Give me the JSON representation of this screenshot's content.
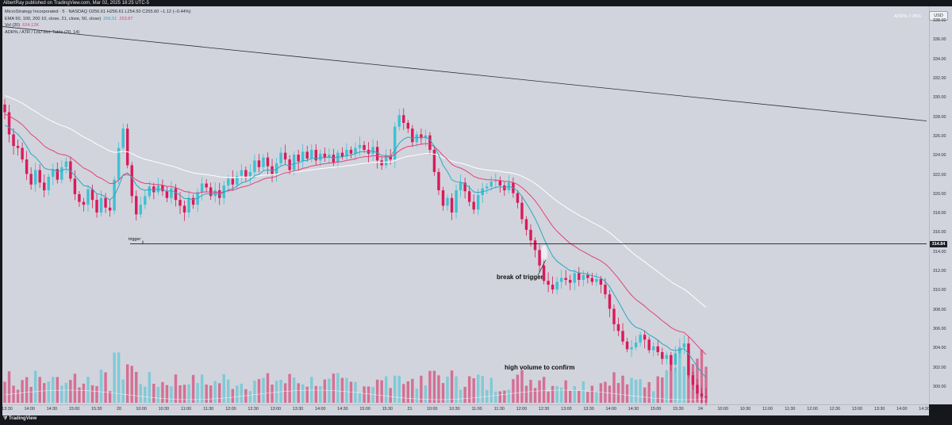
{
  "publisher_line": "AlbertRay published on TradingView.com, Mar 02, 2025 18:25 UTC-5",
  "legend": {
    "title": "MicroStrategy Incorporated · 5 · NASDAQ  O256.61  H256.61  L254.50  C255.60  −1.12 (−0.44%)",
    "ema_label": "EMA 50, 100, 200 10, close, 21, close, 50, close)",
    "ema_v1": "256.51",
    "ema_v2": "253.87",
    "ema_v3": "",
    "vol_label": "Vol (20)",
    "vol_value": "624.12K",
    "adr_label": "ADR% / ATR / LoD dist. Table (20, 14)"
  },
  "adrs_readout": "ADR%  7.35%",
  "currency": "USD",
  "footer_brand": "TradingView",
  "annotations": {
    "trigger": "trigger",
    "break": "break of trigger",
    "volume": "high volume to confirm"
  },
  "price_ticks": [
    "338.00",
    "336.00",
    "334.00",
    "332.00",
    "330.00",
    "328.00",
    "326.00",
    "324.00",
    "322.00",
    "320.00",
    "318.00",
    "316.00",
    "314.00",
    "312.00",
    "310.00",
    "308.00",
    "306.00",
    "304.00",
    "302.00",
    "300.00"
  ],
  "time_ticks": [
    "13:30",
    "14:00",
    "14:30",
    "15:00",
    "15:30",
    "20",
    "10:00",
    "10:30",
    "11:00",
    "11:30",
    "12:00",
    "12:30",
    "13:00",
    "13:30",
    "14:00",
    "14:30",
    "15:00",
    "15:30",
    "21",
    "10:00",
    "10:30",
    "11:00",
    "11:30",
    "12:00",
    "12:30",
    "13:00",
    "13:30",
    "14:00",
    "14:30",
    "15:00",
    "15:30",
    "24",
    "10:00",
    "10:30",
    "11:00",
    "11:30",
    "12:00",
    "12:30",
    "13:00",
    "13:30",
    "14:00",
    "14:30"
  ],
  "colors": {
    "background": "#d1d4dc",
    "up": "#3ec1d3",
    "down": "#d81b5a",
    "ema_fast": "#2aa8c4",
    "ema_mid": "#e0437a",
    "ema_slow": "#ffffff"
  },
  "chart_data": {
    "type": "candlestick",
    "symbol": "MicroStrategy Incorporated",
    "interval": "5",
    "exchange": "NASDAQ",
    "ylim": [
      299,
      339
    ],
    "trigger_level": 314.84,
    "last_price_label": "314.84",
    "trendline": {
      "start_price": 337.4,
      "end_price": 327.6
    },
    "closes": [
      328.5,
      326.2,
      325.0,
      324.8,
      323.6,
      322.1,
      321.0,
      322.5,
      321.2,
      320.4,
      321.8,
      322.6,
      321.5,
      322.8,
      323.4,
      321.6,
      320.0,
      319.2,
      318.9,
      320.5,
      319.4,
      318.1,
      319.6,
      318.6,
      318.3,
      321.5,
      324.8,
      326.8,
      323.0,
      319.8,
      317.9,
      318.9,
      319.8,
      320.8,
      320.2,
      320.9,
      320.3,
      319.6,
      320.6,
      319.4,
      318.8,
      318.1,
      319.6,
      318.9,
      320.2,
      321.1,
      320.7,
      319.8,
      320.4,
      319.6,
      320.9,
      321.6,
      321.0,
      321.9,
      322.5,
      321.8,
      322.3,
      323.5,
      322.8,
      323.8,
      322.9,
      322.1,
      323.2,
      324.3,
      323.6,
      322.5,
      324.1,
      323.4,
      324.4,
      323.7,
      324.6,
      323.5,
      324.2,
      323.8,
      324.1,
      323.3,
      324.3,
      323.9,
      324.6,
      324.2,
      324.8,
      325.1,
      324.6,
      324.2,
      324.9,
      323.5,
      323.0,
      324.0,
      323.6,
      327.0,
      328.2,
      327.4,
      326.8,
      325.4,
      326.2,
      325.8,
      326.1,
      324.6,
      322.3,
      320.4,
      318.8,
      319.6,
      318.1,
      320.4,
      321.2,
      320.3,
      319.2,
      318.4,
      319.9,
      320.6,
      320.8,
      321.3,
      321.4,
      320.9,
      320.4,
      321.2,
      320.1,
      319.1,
      317.4,
      316.3,
      315.2,
      314.2,
      312.6,
      311.0,
      310.6,
      310.1,
      310.9,
      311.3,
      311.1,
      310.8,
      311.8,
      311.1,
      311.6,
      311.3,
      310.9,
      311.2,
      310.6,
      309.6,
      308.1,
      306.5,
      305.8,
      304.7,
      303.9,
      304.1,
      304.6,
      305.4,
      304.9,
      303.8,
      304.2,
      303.6,
      302.9,
      303.3,
      302.3,
      303.5,
      304.1,
      304.5,
      301.2,
      300.2,
      299.3,
      299.0,
      298.9
    ],
    "ema_fast_start": 326.8,
    "volume_max": 8.5
  }
}
